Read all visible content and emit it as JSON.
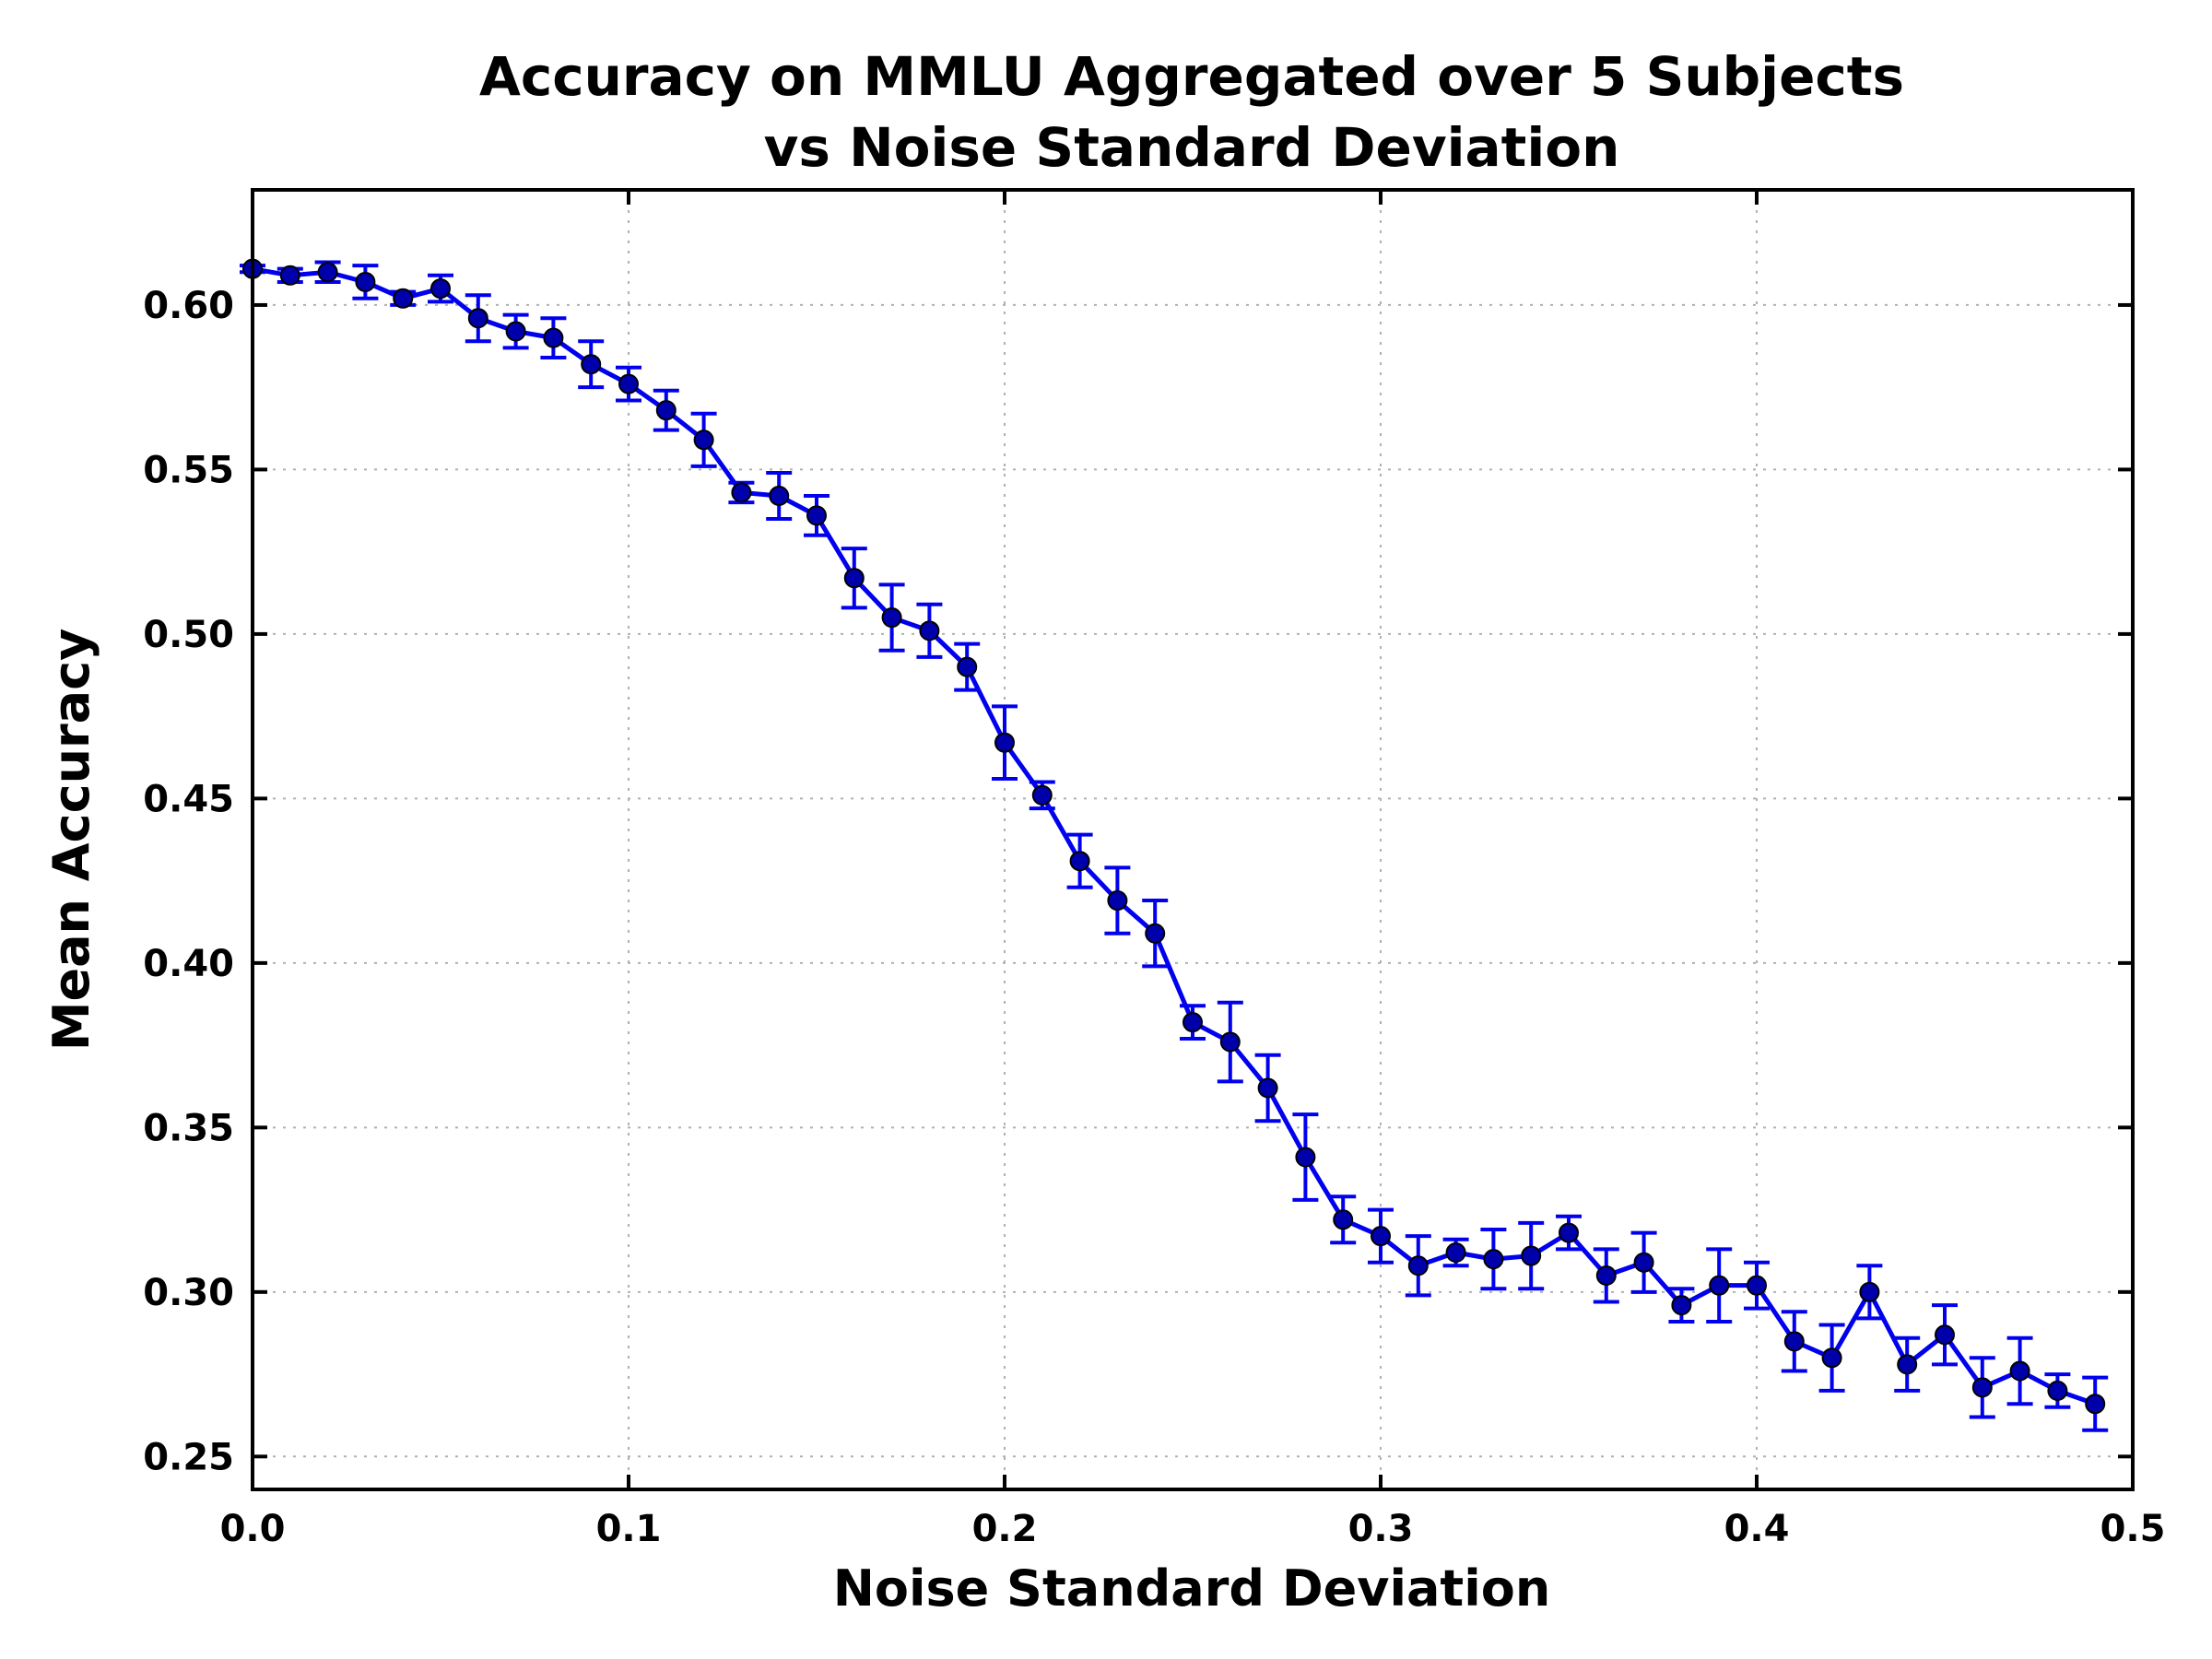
{
  "chart_data": {
    "type": "line",
    "title_lines": [
      "Accuracy on MMLU Aggregated over 5 Subjects",
      "vs Noise Standard Deviation"
    ],
    "xlabel": "Noise Standard Deviation",
    "ylabel": "Mean Accuracy",
    "xlim": [
      0.0,
      0.5
    ],
    "ylim": [
      0.24,
      0.635
    ],
    "xticks": [
      0.0,
      0.1,
      0.2,
      0.3,
      0.4,
      0.5
    ],
    "xtick_labels": [
      "0.0",
      "0.1",
      "0.2",
      "0.3",
      "0.4",
      "0.5"
    ],
    "yticks": [
      0.25,
      0.3,
      0.35,
      0.4,
      0.45,
      0.5,
      0.55,
      0.6
    ],
    "ytick_labels": [
      "0.25",
      "0.30",
      "0.35",
      "0.40",
      "0.45",
      "0.50",
      "0.55",
      "0.60"
    ],
    "grid": true,
    "line_color": "#0000ee",
    "marker_color": "#0000aa",
    "x": [
      0.0,
      0.01,
      0.02,
      0.03,
      0.04,
      0.05,
      0.06,
      0.07,
      0.08,
      0.09,
      0.1,
      0.11,
      0.12,
      0.13,
      0.14,
      0.15,
      0.16,
      0.17,
      0.18,
      0.19,
      0.2,
      0.21,
      0.22,
      0.23,
      0.24,
      0.25,
      0.26,
      0.27,
      0.28,
      0.29,
      0.3,
      0.31,
      0.32,
      0.33,
      0.34,
      0.35,
      0.36,
      0.37,
      0.38,
      0.39,
      0.4,
      0.41,
      0.42,
      0.43,
      0.44,
      0.45,
      0.46,
      0.47,
      0.48,
      0.49
    ],
    "y": [
      0.611,
      0.609,
      0.61,
      0.607,
      0.602,
      0.605,
      0.596,
      0.592,
      0.59,
      0.582,
      0.576,
      0.568,
      0.559,
      0.543,
      0.542,
      0.536,
      0.517,
      0.505,
      0.501,
      0.49,
      0.467,
      0.451,
      0.431,
      0.419,
      0.409,
      0.382,
      0.376,
      0.362,
      0.341,
      0.322,
      0.317,
      0.308,
      0.312,
      0.31,
      0.311,
      0.318,
      0.305,
      0.309,
      0.296,
      0.302,
      0.302,
      0.285,
      0.28,
      0.3,
      0.278,
      0.287,
      0.271,
      0.276,
      0.27,
      0.266
    ],
    "yerr": [
      0.001,
      0.002,
      0.003,
      0.005,
      0.002,
      0.004,
      0.007,
      0.005,
      0.006,
      0.007,
      0.005,
      0.006,
      0.008,
      0.003,
      0.007,
      0.006,
      0.009,
      0.01,
      0.008,
      0.007,
      0.011,
      0.004,
      0.008,
      0.01,
      0.01,
      0.005,
      0.012,
      0.01,
      0.013,
      0.007,
      0.008,
      0.009,
      0.004,
      0.009,
      0.01,
      0.005,
      0.008,
      0.009,
      0.005,
      0.011,
      0.007,
      0.009,
      0.01,
      0.008,
      0.008,
      0.009,
      0.009,
      0.01,
      0.005,
      0.008
    ]
  }
}
